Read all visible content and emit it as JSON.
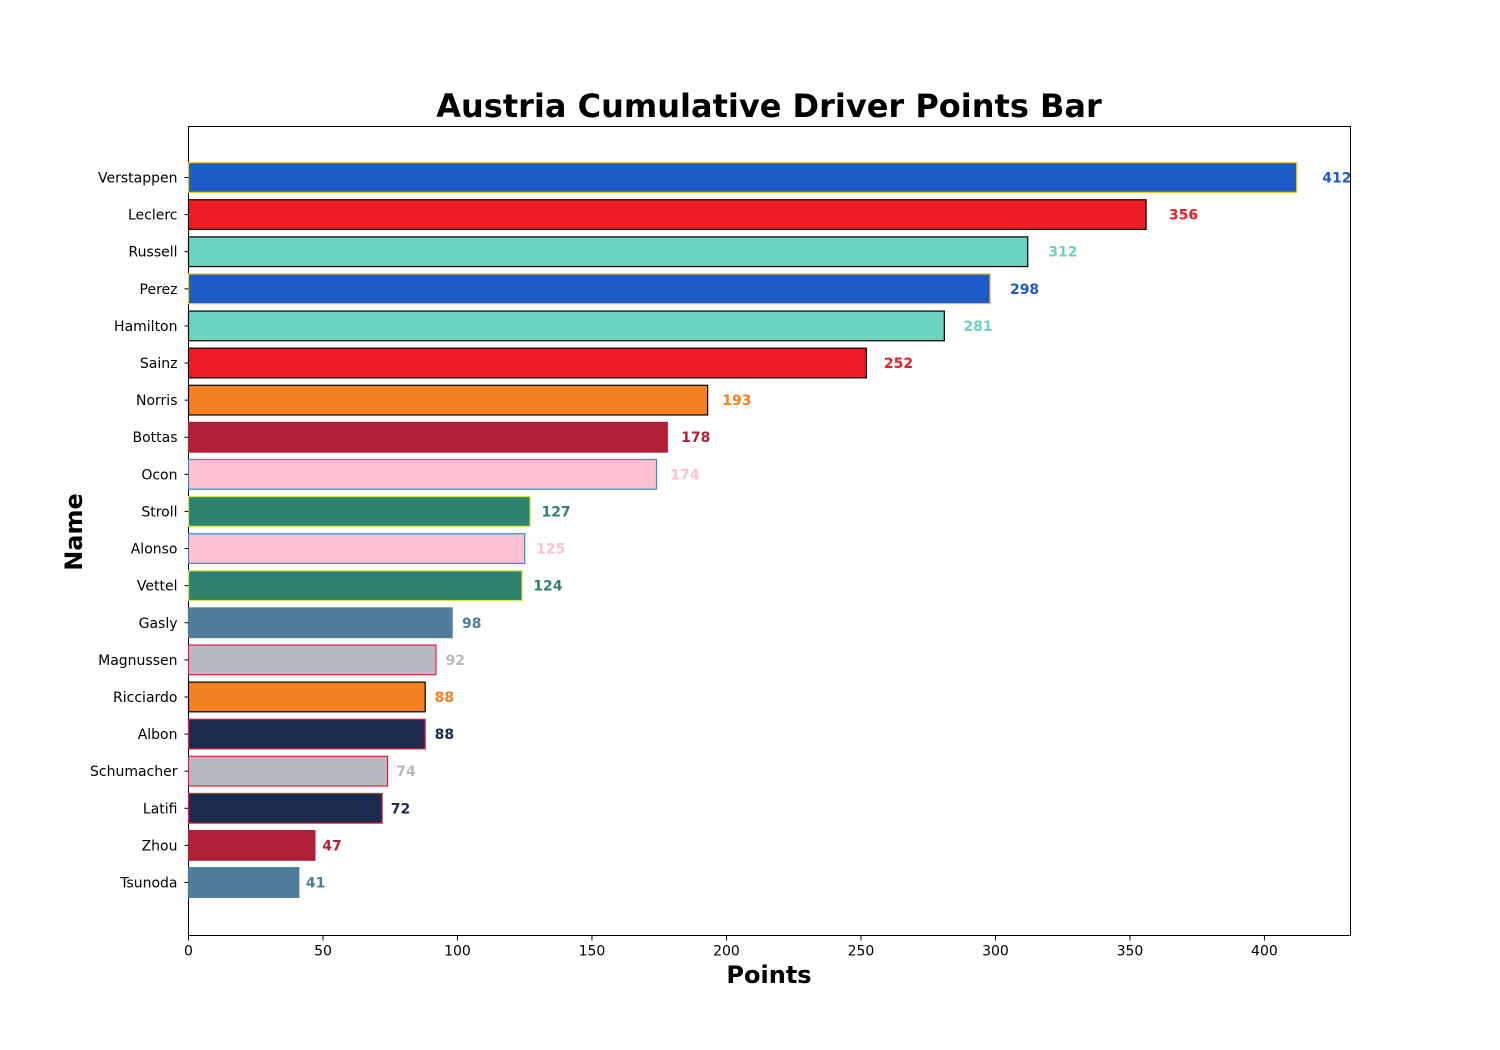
{
  "chart_data": {
    "type": "bar",
    "orientation": "horizontal",
    "title": "Austria Cumulative Driver Points Bar",
    "xlabel": "Points",
    "ylabel": "Name",
    "xlim": [
      0,
      432
    ],
    "xticks": [
      0,
      50,
      100,
      150,
      200,
      250,
      300,
      350,
      400
    ],
    "grid": false,
    "legend": "none",
    "bars": [
      {
        "name": "Verstappen",
        "value": 412,
        "color": "#1f5bc8",
        "edge": "#f5c518",
        "label_color": "#1f5bc8"
      },
      {
        "name": "Leclerc",
        "value": 356,
        "color": "#ee1c25",
        "edge": "#000000",
        "label_color": "#ee1c25"
      },
      {
        "name": "Russell",
        "value": 312,
        "color": "#6cd3bf",
        "edge": "#000000",
        "label_color": "#6cd3bf"
      },
      {
        "name": "Perez",
        "value": 298,
        "color": "#1f5bc8",
        "edge": "#f5c518",
        "label_color": "#1f5bc8"
      },
      {
        "name": "Hamilton",
        "value": 281,
        "color": "#6cd3bf",
        "edge": "#000000",
        "label_color": "#6cd3bf"
      },
      {
        "name": "Sainz",
        "value": 252,
        "color": "#ee1c25",
        "edge": "#000000",
        "label_color": "#ee1c25"
      },
      {
        "name": "Norris",
        "value": 193,
        "color": "#f58020",
        "edge": "#000000",
        "label_color": "#f58020"
      },
      {
        "name": "Bottas",
        "value": 178,
        "color": "#b11f38",
        "edge": "#b11f38",
        "label_color": "#b11f38"
      },
      {
        "name": "Ocon",
        "value": 174,
        "color": "#ffc0cf",
        "edge": "#2f8fdf",
        "label_color": "#ffc0cf"
      },
      {
        "name": "Stroll",
        "value": 127,
        "color": "#2d826d",
        "edge": "#d7e24b",
        "label_color": "#2d826d"
      },
      {
        "name": "Alonso",
        "value": 125,
        "color": "#ffc0cf",
        "edge": "#2f8fdf",
        "label_color": "#ffc0cf"
      },
      {
        "name": "Vettel",
        "value": 124,
        "color": "#2d826d",
        "edge": "#d7e24b",
        "label_color": "#2d826d"
      },
      {
        "name": "Gasly",
        "value": 98,
        "color": "#4e7c9b",
        "edge": "#4e7c9b",
        "label_color": "#4e7c9b"
      },
      {
        "name": "Magnussen",
        "value": 92,
        "color": "#b6babd",
        "edge": "#e1203c",
        "label_color": "#b6babd"
      },
      {
        "name": "Ricciardo",
        "value": 88,
        "color": "#f58020",
        "edge": "#000000",
        "label_color": "#f58020"
      },
      {
        "name": "Albon",
        "value": 88,
        "color": "#1b2a4d",
        "edge": "#e1203c",
        "label_color": "#1b2a4d"
      },
      {
        "name": "Schumacher",
        "value": 74,
        "color": "#b6babd",
        "edge": "#e1203c",
        "label_color": "#b6babd"
      },
      {
        "name": "Latifi",
        "value": 72,
        "color": "#1b2a4d",
        "edge": "#e1203c",
        "label_color": "#1b2a4d"
      },
      {
        "name": "Zhou",
        "value": 47,
        "color": "#b11f38",
        "edge": "#b11f38",
        "label_color": "#b11f38"
      },
      {
        "name": "Tsunoda",
        "value": 41,
        "color": "#4e7c9b",
        "edge": "#4e7c9b",
        "label_color": "#4e7c9b"
      }
    ]
  }
}
